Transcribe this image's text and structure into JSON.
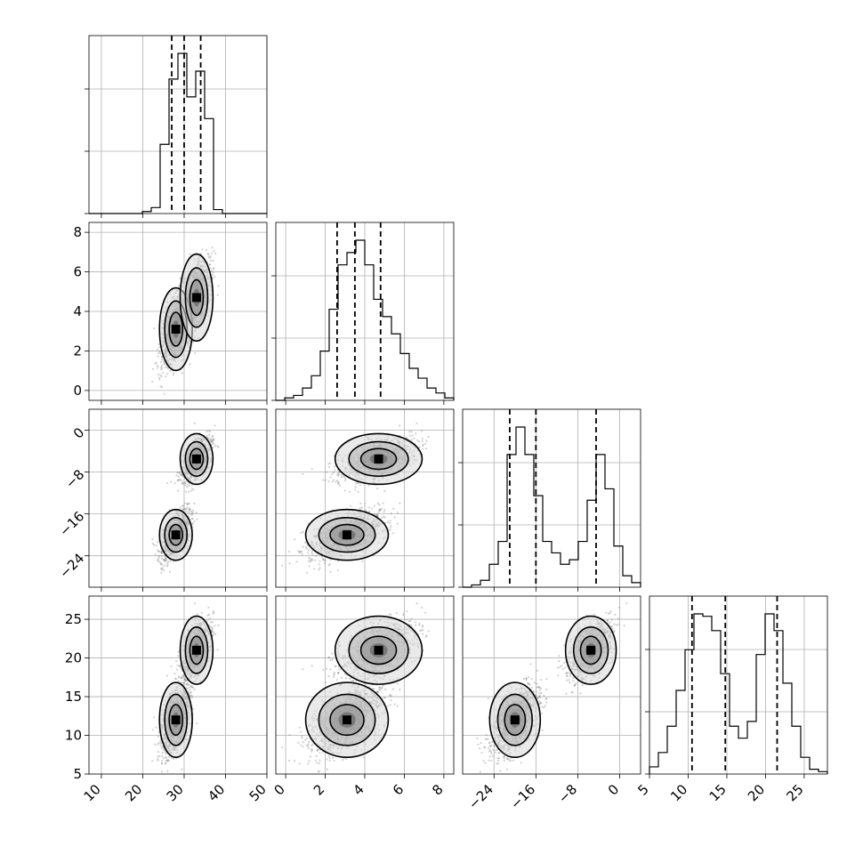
{
  "chart_data": {
    "type": "corner",
    "grid": true,
    "quantile_lines": "dashed",
    "variables": [
      {
        "range": [
          7,
          50
        ],
        "ticks": [
          10,
          20,
          30,
          40,
          50
        ],
        "ticklabels": [
          "10",
          "20",
          "30",
          "40",
          "50"
        ],
        "quantiles": [
          27,
          30,
          34
        ]
      },
      {
        "range": [
          -0.5,
          8.5
        ],
        "ticks": [
          0,
          2,
          4,
          6,
          8
        ],
        "ticklabels": [
          "0",
          "2",
          "4",
          "6",
          "8"
        ],
        "quantiles": [
          2.6,
          3.5,
          4.8
        ]
      },
      {
        "range": [
          -30,
          4
        ],
        "ticks": [
          -24,
          -16,
          -8,
          0
        ],
        "ticklabels": [
          "−24",
          "−16",
          "−8",
          "0"
        ],
        "quantiles": [
          -21,
          -16,
          -4.5
        ]
      },
      {
        "range": [
          5,
          28
        ],
        "ticks": [
          5,
          10,
          15,
          20,
          25
        ],
        "ticklabels": [
          "5",
          "10",
          "15",
          "20",
          "25"
        ],
        "quantiles": [
          10.5,
          14.8,
          21.5
        ]
      }
    ],
    "histograms": [
      {
        "edges": [
          7,
          9.15,
          11.3,
          13.45,
          15.6,
          17.75,
          19.9,
          22.05,
          24.2,
          26.35,
          28.5,
          30.65,
          32.8,
          34.95,
          37.1,
          39.25,
          41.4,
          43.55,
          45.7,
          47.85,
          50
        ],
        "counts": [
          0,
          0,
          0,
          0,
          0,
          0,
          1,
          3,
          35,
          68,
          81,
          59,
          72,
          48,
          2,
          0,
          0,
          0,
          0,
          0
        ]
      },
      {
        "edges": [
          -0.5,
          -0.05,
          0.4,
          0.85,
          1.3,
          1.75,
          2.2,
          2.65,
          3.1,
          3.55,
          4.0,
          4.45,
          4.9,
          5.35,
          5.8,
          6.25,
          6.7,
          7.15,
          7.6,
          8.05,
          8.5
        ],
        "counts": [
          0,
          1,
          2,
          5,
          10,
          20,
          37,
          55,
          60,
          65,
          55,
          41,
          34,
          27,
          19,
          13,
          9,
          5,
          3,
          1
        ]
      },
      {
        "edges": [
          -30,
          -28.3,
          -26.6,
          -24.9,
          -23.2,
          -21.5,
          -19.8,
          -18.1,
          -16.4,
          -14.7,
          -13.0,
          -11.3,
          -9.6,
          -7.9,
          -6.2,
          -4.5,
          -2.8,
          -1.1,
          0.6,
          2.3,
          4
        ],
        "counts": [
          0,
          1,
          3,
          10,
          20,
          58,
          70,
          58,
          40,
          20,
          15,
          10,
          12,
          20,
          38,
          58,
          43,
          18,
          5,
          2
        ]
      },
      {
        "edges": [
          5,
          6.15,
          7.3,
          8.45,
          9.6,
          10.75,
          11.9,
          13.05,
          14.2,
          15.35,
          16.5,
          17.65,
          18.8,
          19.95,
          21.1,
          22.25,
          23.4,
          24.55,
          25.7,
          26.85,
          28
        ],
        "counts": [
          3,
          9,
          20,
          35,
          52,
          67,
          66,
          60,
          42,
          20,
          15,
          22,
          50,
          67,
          60,
          38,
          20,
          7,
          2,
          1
        ]
      }
    ],
    "modes": [
      {
        "weight": 0.55,
        "mean": [
          28,
          3.1,
          -20,
          12
        ],
        "sd": [
          1.8,
          0.95,
          2.2,
          2.2
        ]
      },
      {
        "weight": 0.45,
        "mean": [
          33,
          4.7,
          -5.5,
          21
        ],
        "sd": [
          1.8,
          1.0,
          2.2,
          2.0
        ]
      }
    ]
  }
}
